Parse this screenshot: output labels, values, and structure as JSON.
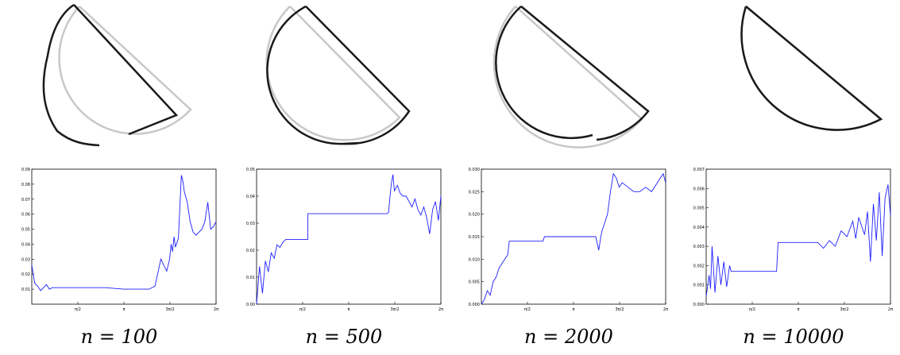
{
  "figure": {
    "colors": {
      "curve": "#1a1a1a",
      "reference": "#c8c8c8",
      "series": "#1f1fff",
      "axis": "#000000"
    },
    "panels": [
      {
        "caption": "n = 100",
        "shape_icon": "semicircle-approximation-n100"
      },
      {
        "caption": "n = 500",
        "shape_icon": "semicircle-approximation-n500"
      },
      {
        "caption": "n = 2000",
        "shape_icon": "semicircle-approximation-n2000"
      },
      {
        "caption": "n = 10000",
        "shape_icon": "semicircle-approximation-n10000"
      }
    ]
  },
  "chart_data": [
    {
      "type": "line",
      "x_ticks": [
        "π/2",
        "π",
        "3π/2",
        "2π"
      ],
      "xlim": [
        0,
        6.283
      ],
      "y_ticks": [
        "0.01",
        "0.02",
        "0.03",
        "0.04",
        "0.05",
        "0.06",
        "0.07",
        "0.08",
        "0.09"
      ],
      "ylim": [
        0.0,
        0.09
      ],
      "series": [
        {
          "x": [
            0,
            0.1,
            0.2,
            0.3,
            0.4,
            0.5,
            0.6,
            0.7,
            0.8,
            1.0,
            1.5,
            2.5,
            3.14,
            3.5,
            4.0,
            4.2,
            4.4,
            4.5,
            4.6,
            4.7,
            4.75,
            4.8,
            4.85,
            4.9,
            5.0,
            5.1,
            5.15,
            5.2,
            5.3,
            5.4,
            5.5,
            5.6,
            5.7,
            5.8,
            5.9,
            6.0,
            6.1,
            6.2,
            6.283
          ],
          "y": [
            0.026,
            0.014,
            0.012,
            0.009,
            0.011,
            0.013,
            0.01,
            0.011,
            0.011,
            0.011,
            0.011,
            0.011,
            0.01,
            0.01,
            0.01,
            0.012,
            0.03,
            0.026,
            0.022,
            0.03,
            0.04,
            0.035,
            0.045,
            0.038,
            0.044,
            0.086,
            0.082,
            0.075,
            0.068,
            0.055,
            0.048,
            0.046,
            0.048,
            0.05,
            0.055,
            0.068,
            0.05,
            0.052,
            0.055
          ]
        }
      ]
    },
    {
      "type": "line",
      "x_ticks": [
        "π/2",
        "π",
        "3π/2",
        "2π"
      ],
      "xlim": [
        0,
        6.283
      ],
      "y_ticks": [
        "0.00",
        "0.01",
        "0.02",
        "0.03",
        "0.04",
        "0.05"
      ],
      "ylim": [
        0.0,
        0.05
      ],
      "series": [
        {
          "x": [
            0,
            0.1,
            0.2,
            0.3,
            0.4,
            0.5,
            0.6,
            0.7,
            0.8,
            0.9,
            1.0,
            1.4,
            1.75,
            1.75,
            2.4,
            2.8,
            3.14,
            4.0,
            4.45,
            4.5,
            4.55,
            4.6,
            4.65,
            4.7,
            4.8,
            4.9,
            5.0,
            5.1,
            5.2,
            5.3,
            5.4,
            5.5,
            5.6,
            5.7,
            5.8,
            5.9,
            6.0,
            6.1,
            6.2,
            6.283
          ],
          "y": [
            0.0,
            0.014,
            0.004,
            0.016,
            0.012,
            0.019,
            0.017,
            0.022,
            0.021,
            0.023,
            0.024,
            0.024,
            0.024,
            0.0335,
            0.0335,
            0.0335,
            0.0335,
            0.0335,
            0.0335,
            0.034,
            0.04,
            0.045,
            0.048,
            0.042,
            0.044,
            0.041,
            0.04,
            0.04,
            0.038,
            0.036,
            0.039,
            0.035,
            0.033,
            0.036,
            0.032,
            0.026,
            0.035,
            0.038,
            0.031,
            0.04
          ]
        }
      ]
    },
    {
      "type": "line",
      "x_ticks": [
        "π/2",
        "π",
        "3π/2",
        "2π"
      ],
      "xlim": [
        0,
        6.283
      ],
      "y_ticks": [
        "0.000",
        "0.005",
        "0.010",
        "0.015",
        "0.020",
        "0.025",
        "0.030"
      ],
      "ylim": [
        0.0,
        0.03
      ],
      "series": [
        {
          "x": [
            0,
            0.1,
            0.2,
            0.3,
            0.4,
            0.5,
            0.6,
            0.7,
            0.8,
            0.9,
            0.95,
            1.0,
            2.1,
            2.15,
            3.14,
            3.9,
            4.0,
            4.1,
            4.2,
            4.3,
            4.4,
            4.5,
            4.6,
            4.7,
            4.8,
            5.0,
            5.2,
            5.4,
            5.6,
            5.8,
            6.0,
            6.1,
            6.2,
            6.283
          ],
          "y": [
            0.0,
            0.001,
            0.003,
            0.002,
            0.005,
            0.006,
            0.008,
            0.009,
            0.01,
            0.011,
            0.014,
            0.014,
            0.014,
            0.015,
            0.015,
            0.015,
            0.012,
            0.016,
            0.018,
            0.02,
            0.025,
            0.029,
            0.028,
            0.026,
            0.027,
            0.026,
            0.025,
            0.025,
            0.026,
            0.025,
            0.027,
            0.028,
            0.029,
            0.027
          ]
        }
      ]
    },
    {
      "type": "line",
      "x_ticks": [
        "π/2",
        "π",
        "3π/2",
        "2π"
      ],
      "xlim": [
        0,
        6.283
      ],
      "y_ticks": [
        "0.000",
        "0.001",
        "0.002",
        "0.003",
        "0.004",
        "0.005",
        "0.006",
        "0.007"
      ],
      "ylim": [
        0.0,
        0.007
      ],
      "series": [
        {
          "x": [
            0,
            0.1,
            0.15,
            0.2,
            0.3,
            0.4,
            0.5,
            0.6,
            0.7,
            0.8,
            0.85,
            2.4,
            2.45,
            3.14,
            3.8,
            4.0,
            4.2,
            4.4,
            4.6,
            4.8,
            5.0,
            5.1,
            5.2,
            5.4,
            5.5,
            5.6,
            5.7,
            5.8,
            5.9,
            6.0,
            6.1,
            6.2,
            6.283
          ],
          "y": [
            0.0004,
            0.0015,
            0.0008,
            0.003,
            0.0006,
            0.0025,
            0.001,
            0.0022,
            0.0009,
            0.002,
            0.0017,
            0.0017,
            0.0032,
            0.0032,
            0.0032,
            0.0029,
            0.0033,
            0.003,
            0.0038,
            0.0035,
            0.0043,
            0.0034,
            0.0045,
            0.0036,
            0.0048,
            0.0022,
            0.0052,
            0.0033,
            0.0058,
            0.0025,
            0.0055,
            0.0062,
            0.0046
          ]
        }
      ]
    }
  ]
}
